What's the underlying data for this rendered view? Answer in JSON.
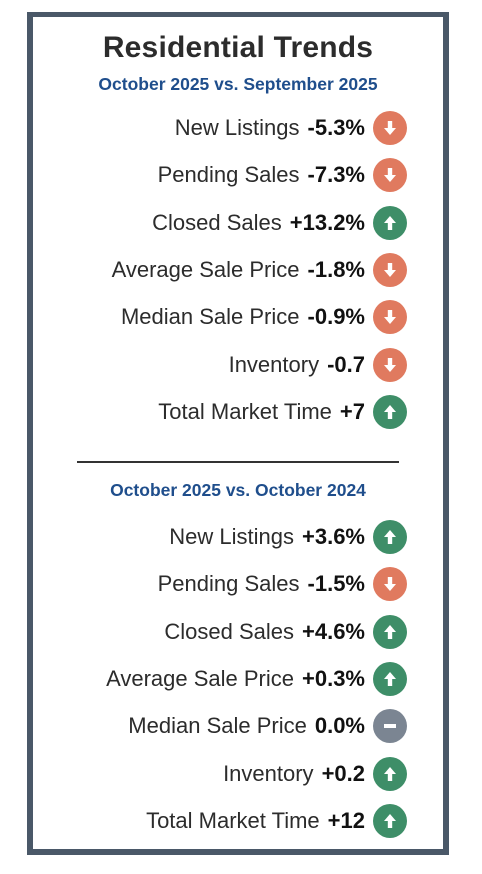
{
  "title": "Residential Trends",
  "colors": {
    "down": "#e07a5f",
    "up": "#3e8e68",
    "neutral": "#7b8592",
    "frame": "#4a5868",
    "subtitle": "#1f4e8c"
  },
  "sections": [
    {
      "subtitle": "October 2025 vs. September 2025",
      "rows": [
        {
          "label": "New Listings",
          "value": "-5.3%",
          "trend": "down"
        },
        {
          "label": "Pending Sales",
          "value": "-7.3%",
          "trend": "down"
        },
        {
          "label": "Closed Sales",
          "value": "+13.2%",
          "trend": "up"
        },
        {
          "label": "Average Sale Price",
          "value": "-1.8%",
          "trend": "down"
        },
        {
          "label": "Median Sale Price",
          "value": "-0.9%",
          "trend": "down"
        },
        {
          "label": "Inventory",
          "value": "-0.7",
          "trend": "down"
        },
        {
          "label": "Total Market Time",
          "value": "+7",
          "trend": "up"
        }
      ]
    },
    {
      "subtitle": "October 2025 vs. October 2024",
      "rows": [
        {
          "label": "New Listings",
          "value": "+3.6%",
          "trend": "up"
        },
        {
          "label": "Pending Sales",
          "value": "-1.5%",
          "trend": "down"
        },
        {
          "label": "Closed Sales",
          "value": "+4.6%",
          "trend": "up"
        },
        {
          "label": "Average Sale Price",
          "value": "+0.3%",
          "trend": "up"
        },
        {
          "label": "Median Sale Price",
          "value": "0.0%",
          "trend": "neutral"
        },
        {
          "label": "Inventory",
          "value": "+0.2",
          "trend": "up"
        },
        {
          "label": "Total Market Time",
          "value": "+12",
          "trend": "up"
        }
      ]
    }
  ]
}
